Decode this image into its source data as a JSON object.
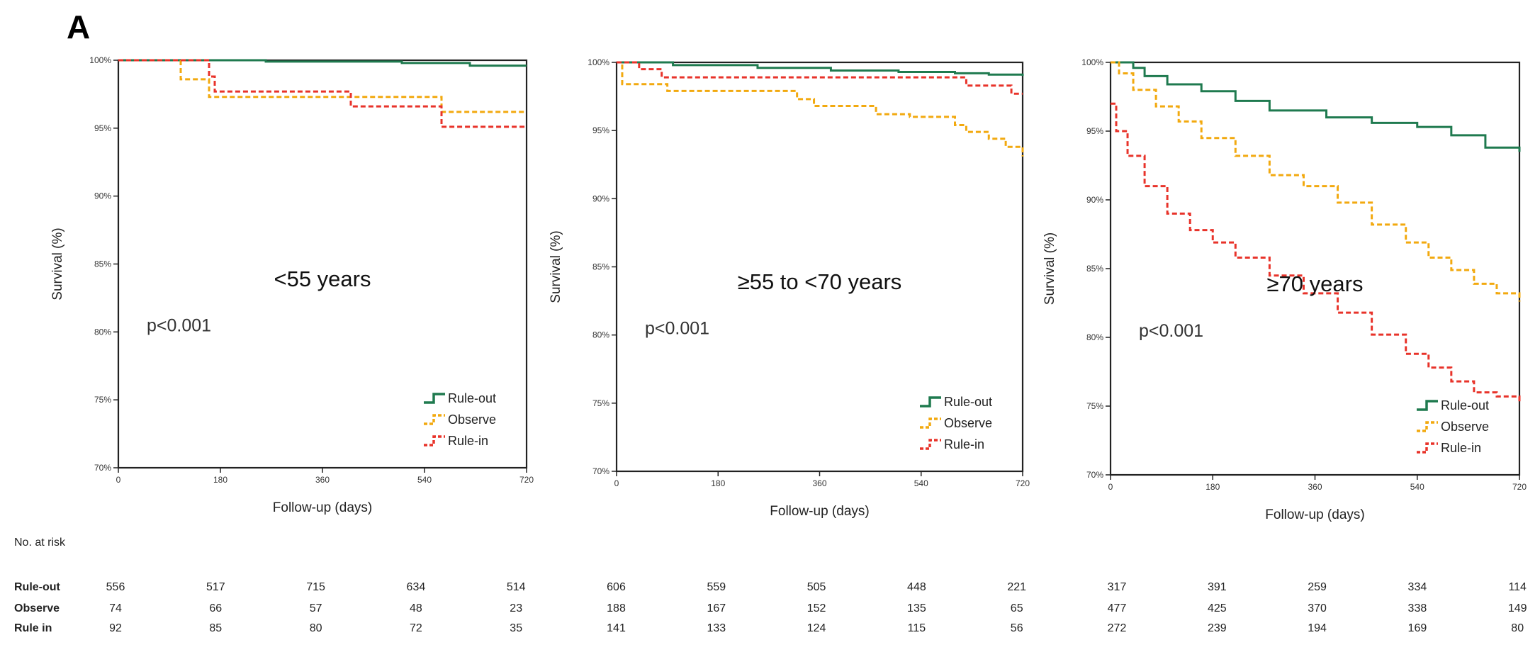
{
  "figure_label": "A",
  "colors": {
    "rule_out": "#1f7a4f",
    "observe": "#f2a90f",
    "rule_in": "#e8332a"
  },
  "chart_data": [
    {
      "type": "line",
      "group_label": "<55 years",
      "p_value": "p<0.001",
      "xlabel": "Follow-up (days)",
      "ylabel": "Survival (%)",
      "xlim": [
        0,
        720
      ],
      "ylim": [
        70,
        100
      ],
      "x_ticks": [
        0,
        180,
        360,
        540,
        720
      ],
      "y_ticks": [
        "70%",
        "75%",
        "80%",
        "85%",
        "90%",
        "95%",
        "100%"
      ],
      "legend_position": "bottom-right",
      "series": [
        {
          "name": "Rule-out",
          "color_key": "rule_out",
          "dashed": false,
          "x": [
            0,
            220,
            260,
            500,
            620,
            720
          ],
          "y": [
            100,
            100,
            99.9,
            99.8,
            99.6,
            99.6
          ]
        },
        {
          "name": "Observe",
          "color_key": "observe",
          "dashed": true,
          "x": [
            0,
            110,
            160,
            570,
            720
          ],
          "y": [
            100,
            98.6,
            97.3,
            96.2,
            96.2
          ]
        },
        {
          "name": "Rule-in",
          "color_key": "rule_in",
          "dashed": true,
          "x": [
            0,
            160,
            170,
            410,
            570,
            720
          ],
          "y": [
            100,
            98.8,
            97.7,
            96.6,
            95.1,
            95.1
          ]
        }
      ]
    },
    {
      "type": "line",
      "group_label": "≥55 to <70 years",
      "p_value": "p<0.001",
      "xlabel": "Follow-up (days)",
      "ylabel": "Survival (%)",
      "xlim": [
        0,
        720
      ],
      "ylim": [
        70,
        100
      ],
      "x_ticks": [
        0,
        180,
        360,
        540,
        720
      ],
      "y_ticks": [
        "70%",
        "75%",
        "80%",
        "85%",
        "90%",
        "95%",
        "100%"
      ],
      "legend_position": "bottom-right",
      "series": [
        {
          "name": "Rule-out",
          "color_key": "rule_out",
          "dashed": false,
          "x": [
            0,
            100,
            250,
            380,
            500,
            600,
            660,
            720
          ],
          "y": [
            100,
            99.8,
            99.6,
            99.4,
            99.3,
            99.2,
            99.1,
            99.0
          ]
        },
        {
          "name": "Observe",
          "color_key": "observe",
          "dashed": true,
          "x": [
            0,
            10,
            90,
            320,
            350,
            460,
            520,
            600,
            620,
            660,
            690,
            720
          ],
          "y": [
            100,
            98.4,
            97.9,
            97.3,
            96.8,
            96.2,
            96.0,
            95.4,
            94.9,
            94.4,
            93.8,
            93.1
          ]
        },
        {
          "name": "Rule-in",
          "color_key": "rule_in",
          "dashed": true,
          "x": [
            0,
            40,
            80,
            600,
            620,
            700,
            720
          ],
          "y": [
            100,
            99.5,
            98.9,
            98.9,
            98.3,
            97.7,
            97.7
          ]
        }
      ]
    },
    {
      "type": "line",
      "group_label": "≥70 years",
      "p_value": "p<0.001",
      "xlabel": "Follow-up (days)",
      "ylabel": "Survival (%)",
      "xlim": [
        0,
        720
      ],
      "ylim": [
        70,
        100
      ],
      "x_ticks": [
        0,
        180,
        360,
        540,
        720
      ],
      "y_ticks": [
        "70%",
        "75%",
        "80%",
        "85%",
        "90%",
        "95%",
        "100%"
      ],
      "legend_position": "bottom-right",
      "series": [
        {
          "name": "Rule-out",
          "color_key": "rule_out",
          "dashed": false,
          "x": [
            0,
            40,
            60,
            100,
            160,
            220,
            280,
            380,
            460,
            540,
            600,
            660,
            720
          ],
          "y": [
            100,
            99.6,
            99.0,
            98.4,
            97.9,
            97.2,
            96.5,
            96.0,
            95.6,
            95.3,
            94.7,
            93.8,
            93.5
          ]
        },
        {
          "name": "Observe",
          "color_key": "observe",
          "dashed": true,
          "x": [
            0,
            15,
            40,
            80,
            120,
            160,
            220,
            280,
            340,
            400,
            460,
            520,
            560,
            600,
            640,
            680,
            720
          ],
          "y": [
            100,
            99.2,
            98.0,
            96.8,
            95.7,
            94.5,
            93.2,
            91.8,
            91.0,
            89.8,
            88.2,
            86.9,
            85.8,
            84.9,
            83.9,
            83.2,
            82.6
          ]
        },
        {
          "name": "Rule-in",
          "color_key": "rule_in",
          "dashed": true,
          "x": [
            0,
            10,
            30,
            60,
            100,
            140,
            180,
            220,
            280,
            340,
            400,
            460,
            520,
            560,
            600,
            640,
            680,
            720
          ],
          "y": [
            97.0,
            95.0,
            93.2,
            91.0,
            89.0,
            87.8,
            86.9,
            85.8,
            84.5,
            83.2,
            81.8,
            80.2,
            78.8,
            77.8,
            76.8,
            76.0,
            75.7,
            75.3
          ]
        }
      ]
    }
  ],
  "risk_table": {
    "title": "No. at risk",
    "rows": [
      {
        "label": "Rule-out",
        "values": [
          "556",
          "517",
          "715",
          "634",
          "514",
          "606",
          "559",
          "505",
          "448",
          "221",
          "317",
          "391",
          "259",
          "334",
          "114"
        ]
      },
      {
        "label": "Observe",
        "values": [
          "74",
          "66",
          "57",
          "48",
          "23",
          "188",
          "167",
          "152",
          "135",
          "65",
          "477",
          "425",
          "370",
          "338",
          "149"
        ]
      },
      {
        "label": "Rule in",
        "values": [
          "92",
          "85",
          "80",
          "72",
          "35",
          "141",
          "133",
          "124",
          "115",
          "56",
          "272",
          "239",
          "194",
          "169",
          "80"
        ]
      }
    ]
  }
}
